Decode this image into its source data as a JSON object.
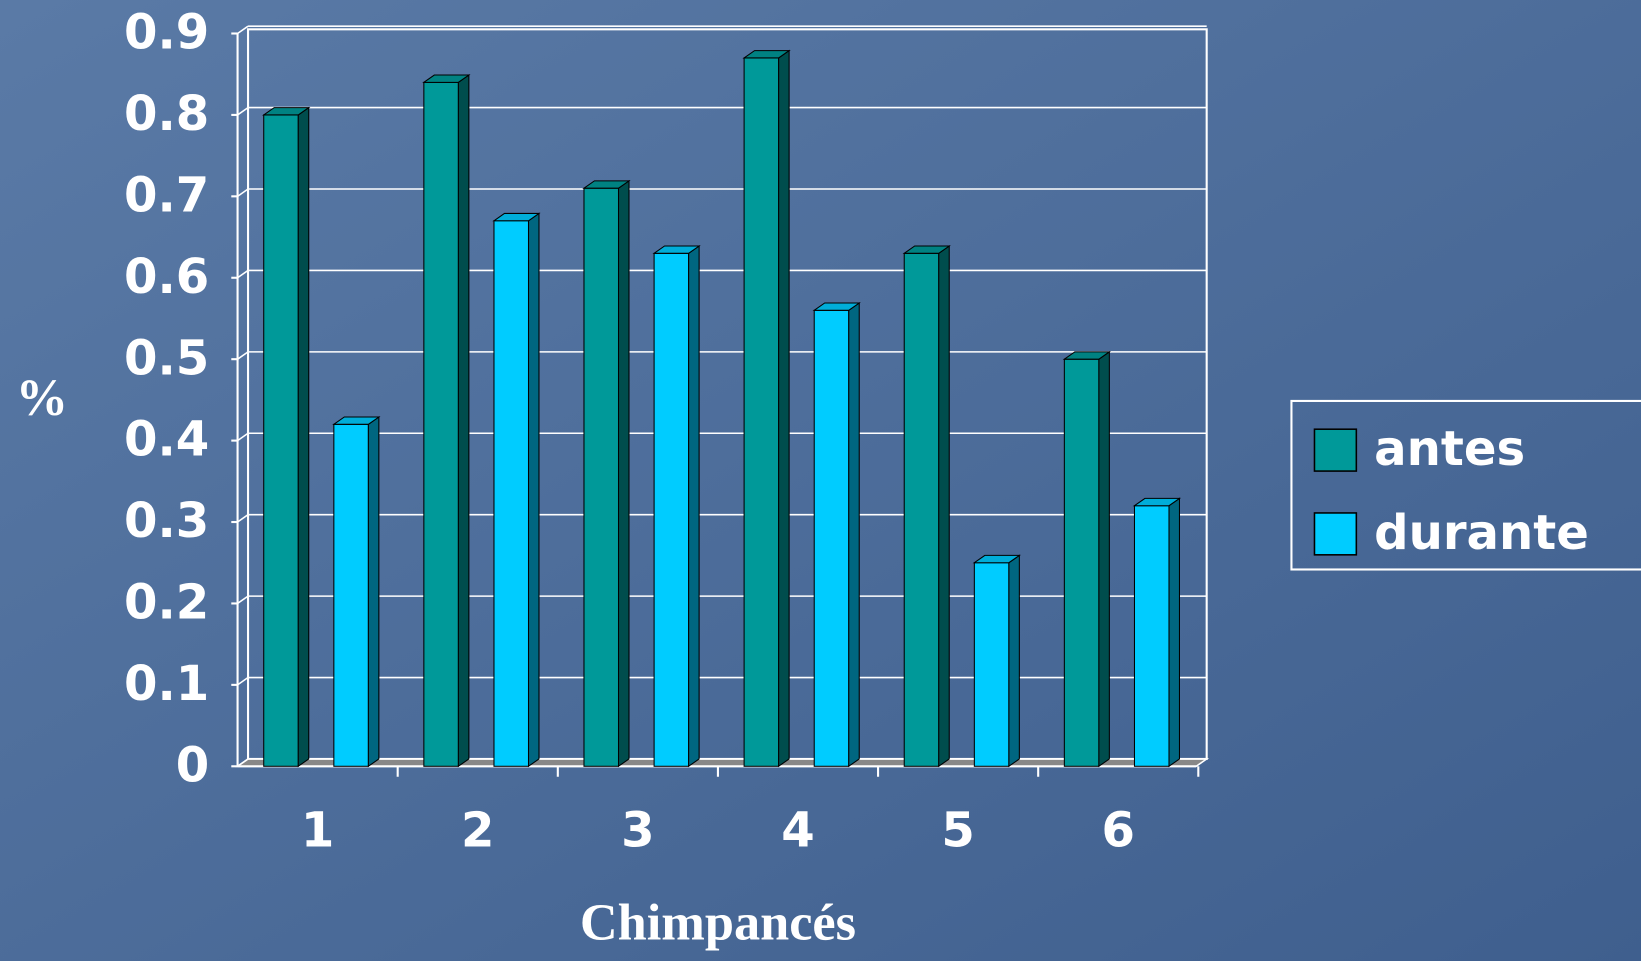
{
  "chart_data": {
    "type": "bar",
    "x_label": "Chimpancés",
    "y_label": "%",
    "categories": [
      "1",
      "2",
      "3",
      "4",
      "5",
      "6"
    ],
    "series": [
      {
        "name": "antes",
        "color": "#009999",
        "values": [
          0.8,
          0.84,
          0.71,
          0.87,
          0.63,
          0.5
        ]
      },
      {
        "name": "durante",
        "color": "#00ccff",
        "values": [
          0.42,
          0.67,
          0.63,
          0.56,
          0.25,
          0.32
        ]
      }
    ],
    "ylim": [
      0,
      0.9
    ],
    "yticks": [
      0,
      0.1,
      0.2,
      0.3,
      0.4,
      0.5,
      0.6,
      0.7,
      0.8,
      0.9
    ],
    "grid": true,
    "legend": "right"
  }
}
